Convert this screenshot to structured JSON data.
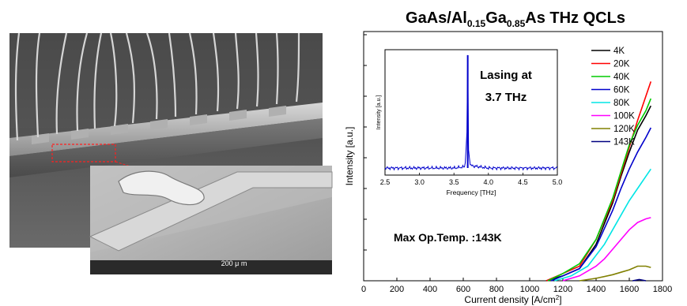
{
  "figure": {
    "title_parts": {
      "p1": "GaAs/Al",
      "s1": "0.15",
      "p2": "Ga",
      "s2": "0.85",
      "p3": "As THz QCLs"
    },
    "sem_images": {
      "scale_label": "200 μ m"
    }
  },
  "chart_data": [
    {
      "type": "line",
      "xlabel": "Current density [A/cm2]",
      "ylabel": "Intensity [a.u.]",
      "xlim": [
        0,
        1800
      ],
      "xticks": [
        0,
        200,
        400,
        600,
        800,
        1000,
        1200,
        1400,
        1600,
        1800
      ],
      "ylim": [
        0,
        1
      ],
      "yticks_labeled": false,
      "annotation": "Max Op.Temp. :143K",
      "legend_position": "top-right",
      "series": [
        {
          "name": "4K",
          "color": "#000000",
          "x": [
            1100,
            1200,
            1300,
            1400,
            1500,
            1550,
            1600,
            1650,
            1700,
            1730
          ],
          "y": [
            0.0,
            0.02,
            0.05,
            0.15,
            0.32,
            0.43,
            0.53,
            0.62,
            0.68,
            0.72
          ]
        },
        {
          "name": "20K",
          "color": "#ff0000",
          "x": [
            1100,
            1200,
            1300,
            1400,
            1500,
            1550,
            1600,
            1650,
            1700,
            1730
          ],
          "y": [
            0.0,
            0.03,
            0.06,
            0.17,
            0.33,
            0.44,
            0.55,
            0.66,
            0.76,
            0.82
          ]
        },
        {
          "name": "40K",
          "color": "#00cc00",
          "x": [
            1110,
            1200,
            1300,
            1400,
            1500,
            1550,
            1600,
            1650,
            1700,
            1730
          ],
          "y": [
            0.0,
            0.03,
            0.07,
            0.17,
            0.34,
            0.45,
            0.56,
            0.64,
            0.7,
            0.75
          ]
        },
        {
          "name": "60K",
          "color": "#0000cc",
          "x": [
            1130,
            1200,
            1300,
            1400,
            1500,
            1550,
            1600,
            1650,
            1700,
            1730
          ],
          "y": [
            0.0,
            0.02,
            0.05,
            0.14,
            0.29,
            0.38,
            0.46,
            0.53,
            0.59,
            0.63
          ]
        },
        {
          "name": "80K",
          "color": "#00e5e5",
          "x": [
            1150,
            1250,
            1350,
            1450,
            1500,
            1550,
            1600,
            1650,
            1700,
            1730
          ],
          "y": [
            0.0,
            0.02,
            0.06,
            0.15,
            0.21,
            0.27,
            0.33,
            0.38,
            0.43,
            0.46
          ]
        },
        {
          "name": "100K",
          "color": "#ff00ff",
          "x": [
            1200,
            1300,
            1400,
            1450,
            1500,
            1550,
            1600,
            1650,
            1700,
            1730
          ],
          "y": [
            0.0,
            0.02,
            0.06,
            0.09,
            0.13,
            0.17,
            0.21,
            0.24,
            0.255,
            0.26
          ]
        },
        {
          "name": "120K",
          "color": "#808000",
          "x": [
            1300,
            1400,
            1500,
            1550,
            1600,
            1650,
            1700,
            1730
          ],
          "y": [
            0.0,
            0.01,
            0.025,
            0.035,
            0.045,
            0.06,
            0.06,
            0.055
          ]
        },
        {
          "name": "143K",
          "color": "#000080",
          "x": [
            1620,
            1660,
            1700
          ],
          "y": [
            0.0,
            0.005,
            0.0
          ]
        }
      ]
    },
    {
      "type": "line",
      "title": "Lasing at 3.7 THz",
      "xlabel": "Frequency [THz]",
      "ylabel": "Intensity [a.u.]",
      "xlim": [
        2.5,
        5.0
      ],
      "xticks": [
        2.5,
        3.0,
        3.5,
        4.0,
        4.5,
        5.0
      ],
      "ylim": [
        0,
        1
      ],
      "peak_frequency": 3.7,
      "series": [
        {
          "color": "#0000cc",
          "x": [
            2.5,
            3.0,
            3.5,
            3.66,
            3.69,
            3.7,
            3.71,
            3.74,
            4.0,
            4.5,
            5.0
          ],
          "y": [
            0.04,
            0.04,
            0.04,
            0.05,
            0.35,
            1.0,
            0.2,
            0.06,
            0.04,
            0.04,
            0.04
          ]
        }
      ]
    }
  ]
}
